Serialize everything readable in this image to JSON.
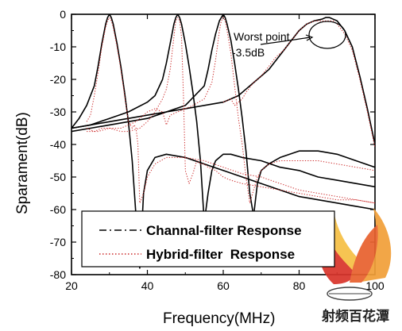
{
  "chart_data": {
    "type": "line",
    "xlabel": "Frequency(MHz)",
    "ylabel": "Sparament(dB)",
    "xlim": [
      20,
      100
    ],
    "ylim": [
      -80,
      0
    ],
    "xticks": [
      20,
      40,
      60,
      80,
      100
    ],
    "yticks": [
      0,
      -10,
      -20,
      -30,
      -40,
      -50,
      -60,
      -70,
      -80
    ],
    "grid": false,
    "legend_position": "bottom-center",
    "series": [
      {
        "name": "Channal-filter Response",
        "color": "#000000",
        "style": "dash-dot",
        "traces": [
          {
            "x": [
              20,
              22,
              24,
              26,
              27,
              28,
              29,
              29.5,
              30,
              30.5,
              31,
              32,
              33,
              34,
              35,
              36,
              37,
              38,
              39,
              40,
              42,
              45,
              50,
              55,
              60,
              65,
              70,
              75,
              80,
              85,
              90,
              95,
              100
            ],
            "y": [
              -35,
              -32,
              -28,
              -22,
              -16,
              -9,
              -3,
              -1,
              0,
              -1,
              -3,
              -9,
              -16,
              -24,
              -33,
              -45,
              -62,
              -78,
              -55,
              -48,
              -44,
              -43,
              -44,
              -46,
              -48,
              -50,
              -52,
              -54,
              -56,
              -57,
              -58,
              -59,
              -60
            ]
          },
          {
            "x": [
              20,
              25,
              30,
              35,
              40,
              42,
              44,
              45,
              46,
              47,
              47.5,
              48,
              48.5,
              49,
              50,
              51,
              52,
              53,
              54,
              55,
              56,
              57,
              58,
              59,
              60,
              62,
              65,
              70,
              75,
              80,
              85,
              90,
              95,
              100
            ],
            "y": [
              -35,
              -34,
              -32,
              -30,
              -27,
              -25,
              -20,
              -15,
              -9,
              -3,
              -1,
              0,
              -1,
              -3,
              -9,
              -16,
              -24,
              -33,
              -45,
              -64,
              -55,
              -48,
              -45,
              -44,
              -43,
              -43,
              -44,
              -45,
              -47,
              -48,
              -50,
              -51,
              -52,
              -53
            ]
          },
          {
            "x": [
              20,
              25,
              30,
              35,
              40,
              45,
              50,
              55,
              56,
              57,
              58,
              59,
              59.5,
              60,
              60.5,
              61,
              62,
              63,
              64,
              65,
              66,
              67,
              68,
              69,
              70,
              72,
              75,
              80,
              85,
              90,
              95,
              100
            ],
            "y": [
              -36,
              -35,
              -34,
              -33,
              -32,
              -30,
              -28,
              -22,
              -17,
              -11,
              -6,
              -2,
              -1,
              0,
              -1,
              -3,
              -8,
              -15,
              -23,
              -32,
              -42,
              -55,
              -62,
              -52,
              -48,
              -46,
              -44,
              -42,
              -42,
              -43,
              -45,
              -47
            ]
          },
          {
            "x": [
              20,
              25,
              30,
              35,
              40,
              45,
              50,
              55,
              60,
              62,
              64,
              66,
              68,
              70,
              72,
              74,
              76,
              78,
              80,
              82,
              84,
              86,
              87,
              88,
              89,
              90,
              92,
              94,
              96,
              98,
              100
            ],
            "y": [
              -35,
              -34,
              -33,
              -32,
              -31,
              -30,
              -29,
              -28,
              -27,
              -26,
              -25,
              -23,
              -21,
              -19,
              -17,
              -14,
              -11,
              -8,
              -5,
              -3,
              -2,
              -1.5,
              -1,
              -1,
              -1.5,
              -2,
              -5,
              -10,
              -19,
              -29,
              -40
            ]
          }
        ]
      },
      {
        "name": "Hybrid-filter  Response",
        "color": "#cc2a2a",
        "style": "dotted",
        "traces": [
          {
            "x": [
              24,
              25,
              26,
              27,
              28,
              29,
              29.5,
              30,
              30.5,
              31,
              32,
              33,
              34,
              35,
              36,
              36.5,
              37,
              37.5,
              38,
              39,
              40,
              42,
              45,
              50,
              55,
              60,
              65,
              70,
              75,
              80,
              85,
              90,
              95,
              100
            ],
            "y": [
              -33,
              -31,
              -25,
              -18,
              -10,
              -4,
              -2,
              -1,
              -2,
              -4,
              -10,
              -17,
              -25,
              -33,
              -35,
              -34,
              -35,
              -40,
              -58,
              -55,
              -50,
              -46,
              -44,
              -44,
              -45,
              -47,
              -49,
              -50,
              -52,
              -54,
              -55,
              -56,
              -57,
              -58
            ]
          },
          {
            "x": [
              24,
              26,
              28,
              30,
              33,
              35,
              38,
              40,
              42,
              44,
              45,
              46,
              47,
              47.5,
              48,
              48.5,
              49,
              49.5,
              50,
              51,
              52,
              53,
              54,
              55,
              56,
              58,
              60,
              62,
              65,
              70,
              75,
              80,
              85,
              90,
              95,
              100
            ],
            "y": [
              -35,
              -36,
              -35,
              -35,
              -36,
              -36,
              -35,
              -33,
              -30,
              -26,
              -23,
              -17,
              -7,
              -2,
              -1,
              -2,
              -7,
              -25,
              -48,
              -52,
              -49,
              -45,
              -46,
              -46,
              -47,
              -48,
              -50,
              -51,
              -52,
              -53,
              -54,
              -55,
              -56,
              -57,
              -57,
              -58
            ]
          },
          {
            "x": [
              24,
              27,
              30,
              33,
              35,
              37,
              38,
              40,
              42,
              44,
              45,
              46,
              48,
              50,
              52,
              55,
              57,
              58,
              59,
              59.5,
              60,
              60.5,
              61,
              62,
              63,
              64,
              65,
              66,
              67,
              68,
              69,
              70,
              72,
              75,
              80,
              85,
              90,
              95,
              100
            ],
            "y": [
              -36,
              -36,
              -35,
              -35,
              -34,
              -33,
              -32,
              -30,
              -29,
              -30,
              -34,
              -31,
              -30,
              -29,
              -28,
              -26,
              -21,
              -14,
              -5,
              -2,
              -1,
              -2,
              -5,
              -12,
              -22,
              -32,
              -40,
              -50,
              -58,
              -54,
              -50,
              -48,
              -46,
              -45,
              -45,
              -45,
              -46,
              -47,
              -48
            ]
          },
          {
            "x": [
              60,
              62,
              63,
              64,
              65,
              66,
              68,
              70,
              72,
              74,
              76,
              78,
              80,
              82,
              84,
              86,
              87,
              88,
              89,
              90,
              92,
              94,
              96,
              98,
              100
            ],
            "y": [
              -27,
              -26,
              -28,
              -27,
              -26,
              -24,
              -21,
              -19,
              -16,
              -13,
              -11,
              -8,
              -5,
              -3,
              -2,
              -2,
              -2,
              -2,
              -2,
              -3,
              -6,
              -11,
              -20,
              -30,
              -41
            ]
          }
        ]
      }
    ],
    "annotation": {
      "lines": [
        "Worst point",
        "-3.5dB"
      ],
      "x": 87,
      "y": -2
    },
    "legend": [
      {
        "label": "Channal-filter Response",
        "color": "#000000",
        "style": "dash-dot"
      },
      {
        "label": "Hybrid-filter  Response",
        "color": "#cc2a2a",
        "style": "dotted"
      }
    ]
  },
  "watermark": {
    "text": "射频百花潭",
    "colors": [
      "#d9352c",
      "#f2a03a",
      "#f6c045"
    ],
    "icon": "flame-logo-icon"
  }
}
